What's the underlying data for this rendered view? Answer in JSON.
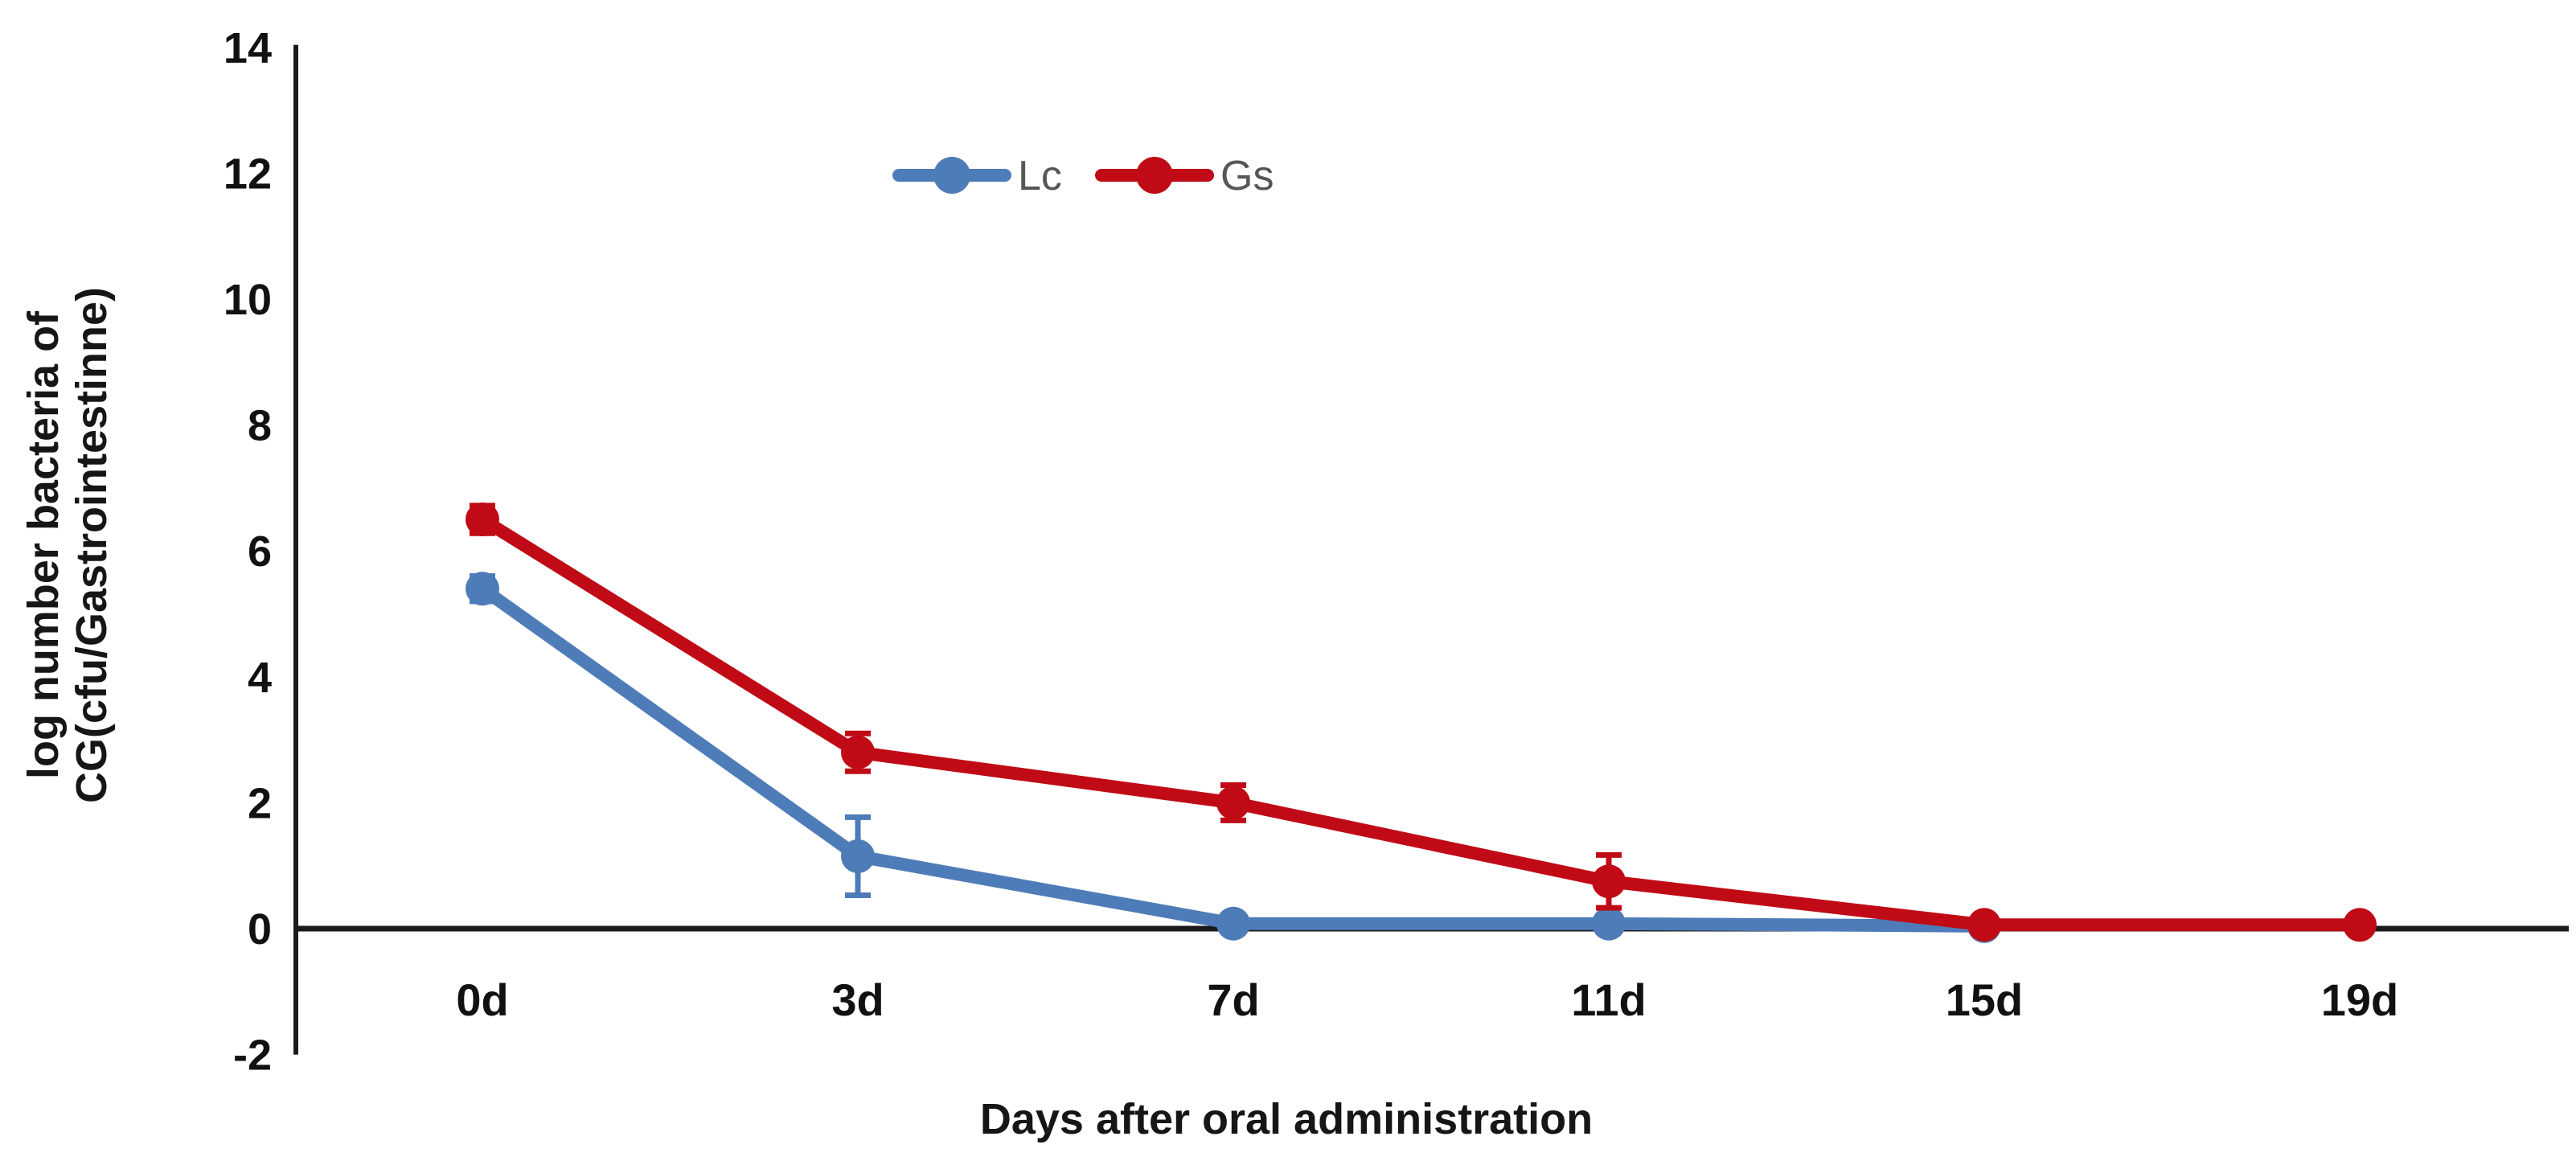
{
  "chart_data": {
    "type": "line",
    "title": "",
    "xlabel": "Days after oral administration",
    "ylabel_lines": [
      "log number bacteria of",
      "CG(cfu/Gastrointestinne)"
    ],
    "categories": [
      "0d",
      "3d",
      "7d",
      "11d",
      "15d",
      "19d"
    ],
    "series": [
      {
        "name": "Lc",
        "color": "#4e7cb8",
        "values": [
          5.4,
          1.15,
          0.08,
          0.08,
          0.04,
          null
        ],
        "errors": [
          0.2,
          0.62,
          null,
          null,
          null,
          null
        ]
      },
      {
        "name": "Gs",
        "color": "#c00b16",
        "values": [
          6.5,
          2.8,
          2.0,
          0.75,
          0.06,
          0.06
        ],
        "errors": [
          0.22,
          0.3,
          0.28,
          0.42,
          null,
          null
        ]
      }
    ],
    "ylim": [
      -2,
      14
    ],
    "ytick_step": 2,
    "yticks": [
      14,
      12,
      10,
      8,
      6,
      4,
      2,
      0,
      -2
    ],
    "grid": false,
    "legend_position": "top-center",
    "marker_shape": "circle",
    "axis_color": "#1a1a1a",
    "legend_text_color": "#575757",
    "tick_label_color": "#111111",
    "background_color": "#ffffff"
  }
}
